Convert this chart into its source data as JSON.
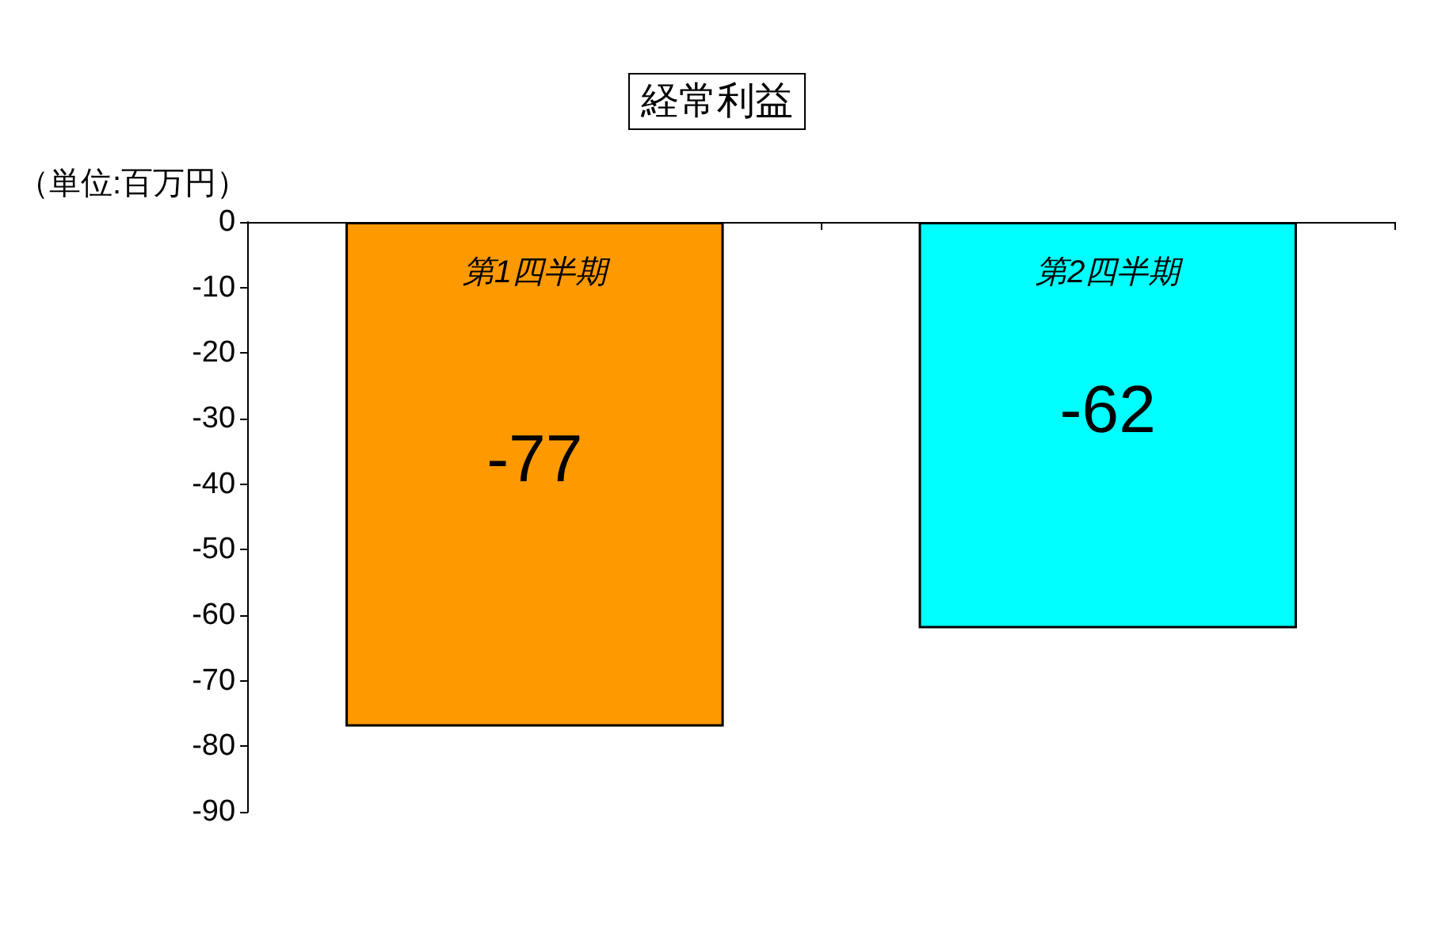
{
  "chart_data": {
    "type": "bar",
    "title": "経常利益",
    "ylabel": "（単位:百万円）",
    "categories": [
      "第1四半期",
      "第2四半期"
    ],
    "values": [
      -77,
      -62
    ],
    "colors": [
      "#ff9900",
      "#00ffff"
    ],
    "ylim": [
      -90,
      0
    ],
    "yticks": [
      0,
      -10,
      -20,
      -30,
      -40,
      -50,
      -60,
      -70,
      -80,
      -90
    ],
    "data_labels": true,
    "grid": false
  }
}
